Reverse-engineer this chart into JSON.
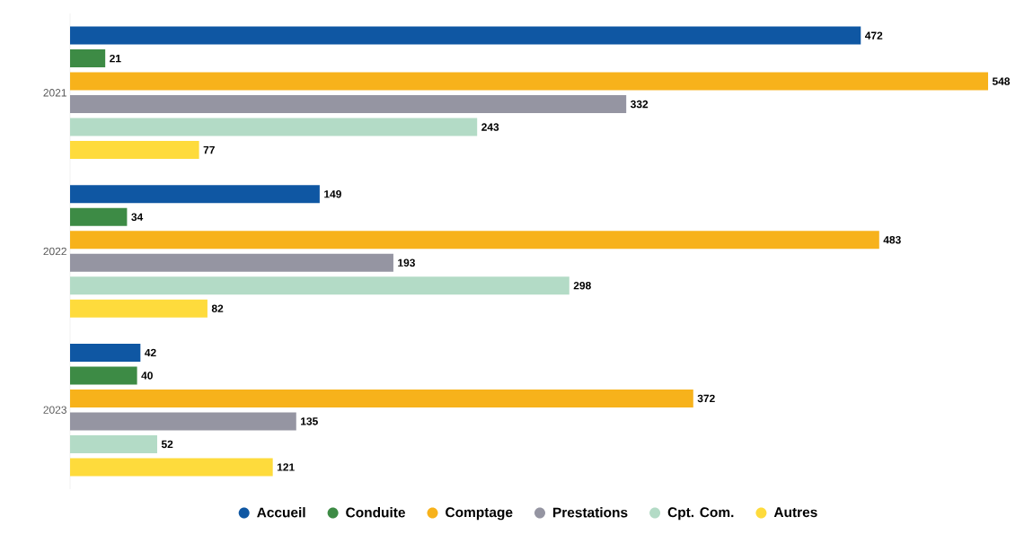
{
  "chart_data": {
    "type": "bar",
    "orientation": "horizontal",
    "categories": [
      "2021",
      "2022",
      "2023"
    ],
    "series": [
      {
        "name": "Accueil",
        "color": "#0f57a3",
        "values": [
          472,
          149,
          42
        ]
      },
      {
        "name": "Conduite",
        "color": "#3d8b45",
        "values": [
          21,
          34,
          40
        ]
      },
      {
        "name": "Comptage",
        "color": "#f7b21b",
        "values": [
          548,
          483,
          372
        ]
      },
      {
        "name": "Prestations",
        "color": "#9595a2",
        "values": [
          332,
          193,
          135
        ]
      },
      {
        "name": "Cpt. Com.",
        "color": "#b3dbc6",
        "values": [
          243,
          298,
          52
        ]
      },
      {
        "name": "Autres",
        "color": "#fedb3c",
        "values": [
          77,
          82,
          121
        ]
      }
    ],
    "data_labels": true,
    "legend": "bottom",
    "tick_labels": "y"
  }
}
